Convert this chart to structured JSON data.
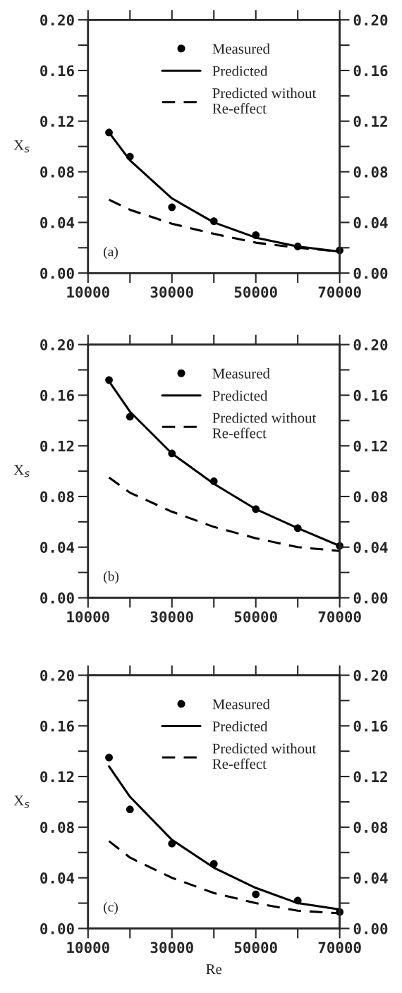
{
  "chart_data": [
    {
      "type": "line",
      "ylabel": "X$_{s}$",
      "annotations": [
        "(a)"
      ],
      "legend": "top right",
      "grid": false,
      "xlim": [
        10000,
        70000
      ],
      "xticks": [
        10000,
        {
          "value": 20000,
          "label": null
        },
        30000,
        {
          "value": 40000,
          "label": null
        },
        50000,
        {
          "value": 60000,
          "label": null
        },
        70000
      ],
      "ylim": [
        0,
        0.2
      ],
      "yticks": [
        {
          "value": 0,
          "label": "0.00"
        },
        {
          "value": 0.02,
          "label": null
        },
        {
          "value": 0.04,
          "label": "0.04"
        },
        {
          "value": 0.06,
          "label": null
        },
        {
          "value": 0.08,
          "label": "0.08"
        },
        {
          "value": 0.1,
          "label": null
        },
        {
          "value": 0.12,
          "label": "0.12"
        },
        {
          "value": 0.14,
          "label": null
        },
        {
          "value": 0.16,
          "label": "0.16"
        },
        {
          "value": 0.18,
          "label": null
        },
        {
          "value": 0.2,
          "label": "0.20"
        }
      ],
      "y2lim": [
        0,
        0.2
      ],
      "y2ticks": [
        {
          "value": 0,
          "label": "0.00"
        },
        {
          "value": 0.02,
          "label": null
        },
        {
          "value": 0.04,
          "label": "0.04"
        },
        {
          "value": 0.06,
          "label": null
        },
        {
          "value": 0.08,
          "label": "0.08"
        },
        {
          "value": 0.1,
          "label": null
        },
        {
          "value": 0.12,
          "label": "0.12"
        },
        {
          "value": 0.14,
          "label": null
        },
        {
          "value": 0.16,
          "label": "0.16"
        },
        {
          "value": 0.18,
          "label": null
        },
        {
          "value": 0.2,
          "label": "0.20"
        }
      ],
      "x": [
        15000,
        20000,
        30000,
        40000,
        50000,
        60000,
        70000
      ],
      "series": [
        {
          "name": "Measured",
          "type": "scatter",
          "marker": "circle",
          "color": "#000000",
          "values": [
            0.111,
            0.092,
            0.052,
            0.041,
            0.03,
            0.021,
            0.018
          ]
        },
        {
          "name": "Predicted",
          "marker": "none",
          "line_style": "solid",
          "color": "#000000",
          "values": [
            0.111,
            0.089,
            0.059,
            0.04,
            0.028,
            0.021,
            0.017
          ]
        },
        {
          "name": "Predicted without\nRe-effect",
          "marker": "none",
          "line_style": "dashed",
          "color": "#000000",
          "values": [
            0.058,
            0.05,
            0.039,
            0.031,
            0.024,
            0.02,
            0.017
          ]
        }
      ]
    },
    {
      "type": "line",
      "ylabel": "X$_{s}$",
      "annotations": [
        "(b)"
      ],
      "legend": "top right",
      "grid": false,
      "xlim": [
        10000,
        70000
      ],
      "xticks": [
        10000,
        {
          "value": 20000,
          "label": null
        },
        30000,
        {
          "value": 40000,
          "label": null
        },
        50000,
        {
          "value": 60000,
          "label": null
        },
        70000
      ],
      "ylim": [
        0,
        0.2
      ],
      "yticks": [
        {
          "value": 0,
          "label": "0.00"
        },
        {
          "value": 0.02,
          "label": null
        },
        {
          "value": 0.04,
          "label": "0.04"
        },
        {
          "value": 0.06,
          "label": null
        },
        {
          "value": 0.08,
          "label": "0.08"
        },
        {
          "value": 0.1,
          "label": null
        },
        {
          "value": 0.12,
          "label": "0.12"
        },
        {
          "value": 0.14,
          "label": null
        },
        {
          "value": 0.16,
          "label": "0.16"
        },
        {
          "value": 0.18,
          "label": null
        },
        {
          "value": 0.2,
          "label": "0.20"
        }
      ],
      "y2lim": [
        0,
        0.2
      ],
      "y2ticks": [
        {
          "value": 0,
          "label": "0.00"
        },
        {
          "value": 0.02,
          "label": null
        },
        {
          "value": 0.04,
          "label": "0.04"
        },
        {
          "value": 0.06,
          "label": null
        },
        {
          "value": 0.08,
          "label": "0.08"
        },
        {
          "value": 0.1,
          "label": null
        },
        {
          "value": 0.12,
          "label": "0.12"
        },
        {
          "value": 0.14,
          "label": null
        },
        {
          "value": 0.16,
          "label": "0.16"
        },
        {
          "value": 0.18,
          "label": null
        },
        {
          "value": 0.2,
          "label": "0.20"
        }
      ],
      "x": [
        15000,
        20000,
        30000,
        40000,
        50000,
        60000,
        70000
      ],
      "series": [
        {
          "name": "Measured",
          "type": "scatter",
          "marker": "circle",
          "color": "#000000",
          "values": [
            0.172,
            0.143,
            0.114,
            0.092,
            0.07,
            0.055,
            0.041
          ]
        },
        {
          "name": "Predicted",
          "marker": "none",
          "line_style": "solid",
          "color": "#000000",
          "values": [
            0.171,
            0.147,
            0.114,
            0.09,
            0.07,
            0.055,
            0.041
          ]
        },
        {
          "name": "Predicted without\nRe-effect",
          "marker": "none",
          "line_style": "dashed",
          "color": "#000000",
          "values": [
            0.095,
            0.083,
            0.068,
            0.056,
            0.047,
            0.04,
            0.037
          ]
        }
      ]
    },
    {
      "type": "line",
      "xlabel": "Re",
      "ylabel": "X$_{s}$",
      "annotations": [
        "(c)"
      ],
      "legend": "top right",
      "grid": false,
      "xlim": [
        10000,
        70000
      ],
      "xticks": [
        10000,
        {
          "value": 20000,
          "label": null
        },
        30000,
        {
          "value": 40000,
          "label": null
        },
        50000,
        {
          "value": 60000,
          "label": null
        },
        70000
      ],
      "ylim": [
        0,
        0.2
      ],
      "yticks": [
        {
          "value": 0,
          "label": "0.00"
        },
        {
          "value": 0.02,
          "label": null
        },
        {
          "value": 0.04,
          "label": "0.04"
        },
        {
          "value": 0.06,
          "label": null
        },
        {
          "value": 0.08,
          "label": "0.08"
        },
        {
          "value": 0.1,
          "label": null
        },
        {
          "value": 0.12,
          "label": "0.12"
        },
        {
          "value": 0.14,
          "label": null
        },
        {
          "value": 0.16,
          "label": "0.16"
        },
        {
          "value": 0.18,
          "label": null
        },
        {
          "value": 0.2,
          "label": "0.20"
        }
      ],
      "y2lim": [
        0,
        0.2
      ],
      "y2ticks": [
        {
          "value": 0,
          "label": "0.00"
        },
        {
          "value": 0.02,
          "label": null
        },
        {
          "value": 0.04,
          "label": "0.04"
        },
        {
          "value": 0.06,
          "label": null
        },
        {
          "value": 0.08,
          "label": "0.08"
        },
        {
          "value": 0.1,
          "label": null
        },
        {
          "value": 0.12,
          "label": "0.12"
        },
        {
          "value": 0.14,
          "label": null
        },
        {
          "value": 0.16,
          "label": "0.16"
        },
        {
          "value": 0.18,
          "label": null
        },
        {
          "value": 0.2,
          "label": "0.20"
        }
      ],
      "x": [
        15000,
        20000,
        30000,
        40000,
        50000,
        60000,
        70000
      ],
      "series": [
        {
          "name": "Measured",
          "type": "scatter",
          "marker": "circle",
          "color": "#000000",
          "values": [
            0.135,
            0.094,
            0.067,
            0.051,
            0.027,
            0.022,
            0.013
          ]
        },
        {
          "name": "Predicted",
          "marker": "none",
          "line_style": "solid",
          "color": "#000000",
          "values": [
            0.128,
            0.104,
            0.07,
            0.048,
            0.032,
            0.02,
            0.015
          ]
        },
        {
          "name": "Predicted without\nRe-effect",
          "marker": "none",
          "line_style": "dashed",
          "color": "#000000",
          "values": [
            0.069,
            0.056,
            0.04,
            0.028,
            0.02,
            0.014,
            0.012
          ]
        }
      ]
    }
  ]
}
